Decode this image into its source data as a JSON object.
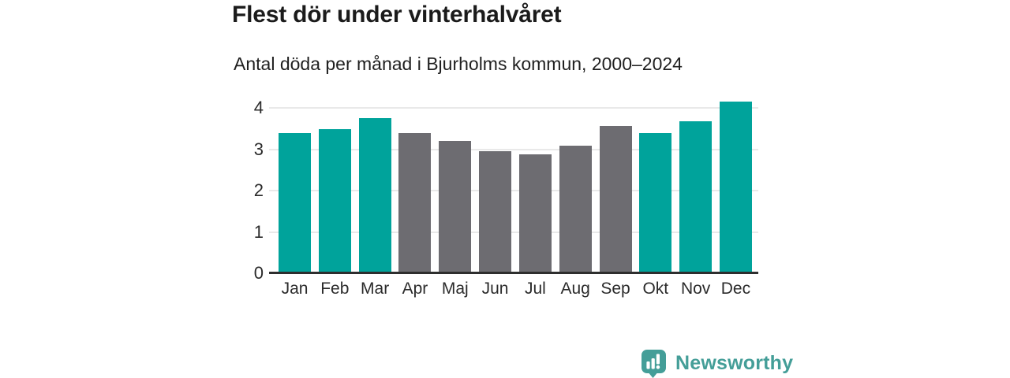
{
  "header": {
    "title": "Flest dör under vinterhalvåret",
    "subtitle": "Antal döda per månad i Bjurholms kommun, 2000–2024"
  },
  "chart_data": {
    "type": "bar",
    "title": "Flest dör under vinterhalvåret",
    "subtitle": "Antal döda per månad i Bjurholms kommun, 2000–2024",
    "categories": [
      "Jan",
      "Feb",
      "Mar",
      "Apr",
      "Maj",
      "Jun",
      "Jul",
      "Aug",
      "Sep",
      "Okt",
      "Nov",
      "Dec"
    ],
    "values": [
      3.4,
      3.48,
      3.76,
      3.4,
      3.2,
      2.96,
      2.88,
      3.08,
      3.56,
      3.4,
      3.68,
      4.16
    ],
    "color_keys": [
      "highlight",
      "highlight",
      "highlight",
      "muted",
      "muted",
      "muted",
      "muted",
      "muted",
      "muted",
      "highlight",
      "highlight",
      "highlight"
    ],
    "palette": {
      "highlight": "#00a39b",
      "muted": "#6d6c71"
    },
    "xlabel": "",
    "ylabel": "",
    "yticks": [
      0,
      1,
      2,
      3,
      4
    ],
    "ylim": [
      0,
      4.23
    ],
    "grid": true,
    "legend_position": "none",
    "gridline_color": "#e9e9e9",
    "axis_line_color": "#2e2e2e",
    "tick_label_color": "#2b2b2b"
  },
  "footer": {
    "brand": "Newsworthy",
    "brand_color": "#449e98",
    "logo_icon": "newsworthy-speech-bubble-chart-icon"
  }
}
